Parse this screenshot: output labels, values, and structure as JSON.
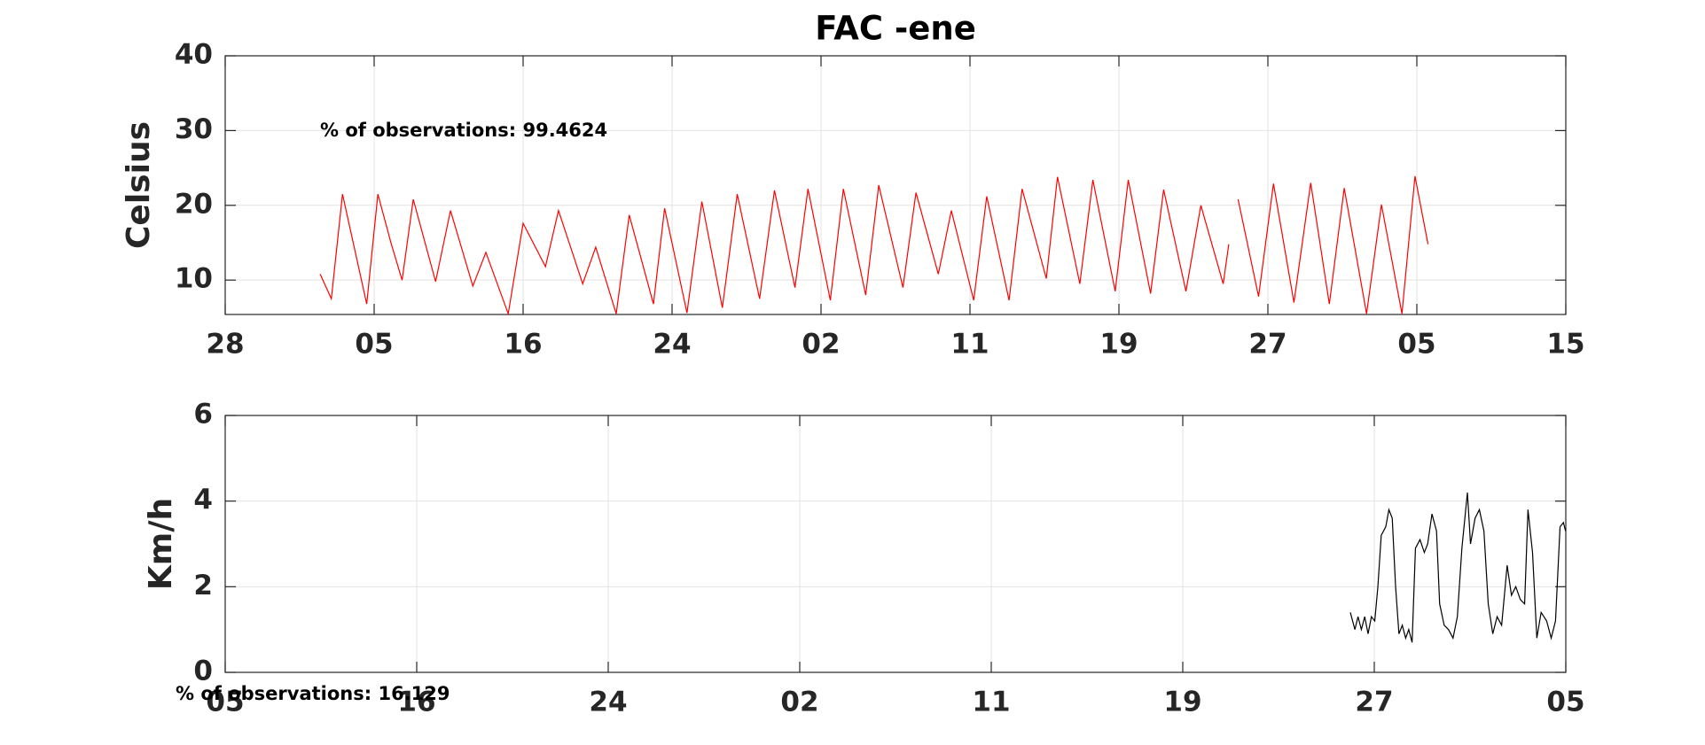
{
  "chart_data": [
    {
      "type": "line",
      "title": "FAC -ene",
      "ylabel": "Celsius",
      "annotation": "% of observations: 99.4624",
      "xlim": [
        0,
        72
      ],
      "xticks": [
        {
          "value": 0,
          "label": "28"
        },
        {
          "value": 8,
          "label": "05"
        },
        {
          "value": 16,
          "label": "16"
        },
        {
          "value": 24,
          "label": "24"
        },
        {
          "value": 32,
          "label": "02"
        },
        {
          "value": 40,
          "label": "11"
        },
        {
          "value": 48,
          "label": "19"
        },
        {
          "value": 56,
          "label": "27"
        },
        {
          "value": 64,
          "label": "05"
        },
        {
          "value": 72,
          "label": "15"
        }
      ],
      "ylim": [
        5.4,
        40
      ],
      "yticks": [
        10,
        20,
        30,
        40
      ],
      "grid": true,
      "color": "#ff0000",
      "x": [
        5.1,
        5.7,
        6.3,
        7.6,
        8.2,
        8.9,
        9.5,
        10.1,
        11.3,
        12.1,
        13.3,
        14.0,
        15.2,
        16.0,
        17.2,
        17.9,
        19.2,
        19.9,
        21.0,
        21.7,
        23.0,
        23.6,
        24.8,
        25.6,
        26.7,
        27.5,
        28.7,
        29.5,
        30.6,
        31.3,
        32.5,
        33.2,
        34.4,
        35.1,
        36.4,
        37.1,
        38.3,
        39.0,
        40.2,
        40.9,
        42.1,
        42.8,
        44.1,
        44.7,
        45.9,
        46.6,
        47.8,
        48.5,
        49.7,
        50.4,
        51.6,
        52.4,
        53.6,
        53.9,
        54.2,
        54.4,
        55.5,
        56.3,
        57.4,
        58.3,
        59.3,
        60.1,
        61.3,
        62.1,
        63.2,
        63.9,
        64.6
      ],
      "values": [
        10.8,
        7.5,
        21.5,
        6.8,
        21.5,
        15,
        10,
        20.8,
        9.8,
        19.3,
        9.2,
        13.7,
        5.5,
        17.6,
        11.8,
        19.3,
        9.5,
        14.4,
        5.5,
        18.7,
        6.8,
        19.6,
        5.6,
        20.5,
        6.3,
        21.5,
        7.5,
        22,
        9,
        22.2,
        7.3,
        22.2,
        8,
        22.7,
        9,
        21.7,
        10.8,
        19.3,
        7.3,
        21.2,
        7.3,
        22.2,
        10.2,
        23.8,
        9.5,
        23.4,
        8.5,
        23.4,
        8.2,
        22.1,
        8.5,
        20,
        9.5,
        14.8,
        null,
        20.8,
        7.8,
        22.9,
        7,
        23,
        6.8,
        22.3,
        5.5,
        20.1,
        5.5,
        23.9,
        14.8
      ]
    },
    {
      "type": "line",
      "ylabel": "Km/h",
      "annotation": "% of observations: 16.129",
      "xlim": [
        0,
        56
      ],
      "xticks": [
        {
          "value": 0,
          "label": "05"
        },
        {
          "value": 8,
          "label": "16"
        },
        {
          "value": 16,
          "label": "24"
        },
        {
          "value": 24,
          "label": "02"
        },
        {
          "value": 32,
          "label": "11"
        },
        {
          "value": 40,
          "label": "19"
        },
        {
          "value": 48,
          "label": "27"
        },
        {
          "value": 56,
          "label": "05"
        }
      ],
      "ylim": [
        0,
        6
      ],
      "yticks": [
        0,
        2,
        4,
        6
      ],
      "grid": true,
      "color": "#000000",
      "x": [
        47.0,
        47.19,
        47.32,
        47.46,
        47.6,
        47.74,
        47.88,
        48.02,
        48.15,
        48.29,
        48.48,
        48.61,
        48.75,
        48.89,
        49.03,
        49.17,
        49.31,
        49.44,
        49.58,
        49.72,
        49.91,
        50.09,
        50.23,
        50.41,
        50.6,
        50.73,
        50.92,
        51.1,
        51.29,
        51.47,
        51.66,
        51.89,
        52.02,
        52.21,
        52.39,
        52.58,
        52.76,
        52.95,
        53.13,
        53.32,
        53.55,
        53.73,
        53.91,
        54.1,
        54.28,
        54.42,
        54.61,
        54.79,
        54.97,
        55.2,
        55.39,
        55.57,
        55.76,
        55.9,
        55.99
      ],
      "values": [
        1.4,
        1.0,
        1.3,
        1.0,
        1.3,
        0.9,
        1.3,
        1.2,
        2.0,
        3.2,
        3.4,
        3.8,
        3.6,
        2.0,
        0.9,
        1.1,
        0.8,
        1.0,
        0.7,
        2.9,
        3.1,
        2.8,
        3.0,
        3.7,
        3.3,
        1.6,
        1.1,
        1.0,
        0.8,
        1.3,
        2.9,
        4.2,
        3.0,
        3.6,
        3.8,
        3.3,
        1.6,
        0.9,
        1.3,
        1.1,
        2.5,
        1.8,
        2.0,
        1.7,
        1.6,
        3.8,
        2.8,
        0.8,
        1.4,
        1.2,
        0.8,
        1.2,
        3.4,
        3.5,
        3.3
      ]
    }
  ]
}
